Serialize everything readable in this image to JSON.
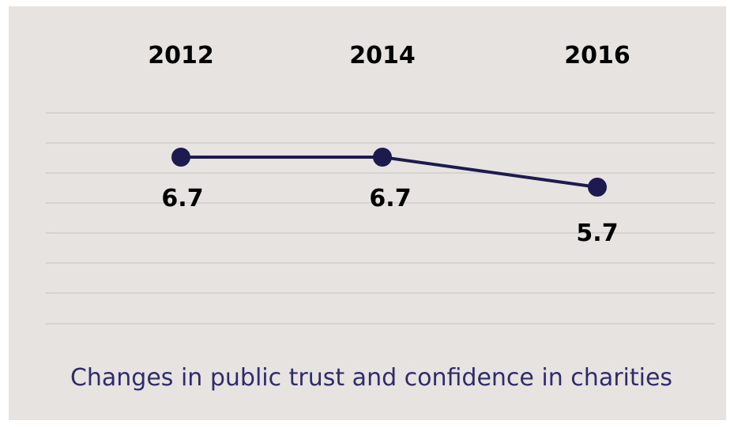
{
  "chart_data": {
    "type": "line",
    "x": [
      "2012",
      "2014",
      "2016"
    ],
    "series": [
      {
        "values": [
          6.7,
          6.7,
          5.7
        ]
      }
    ],
    "data_labels": [
      "6.7",
      "6.7",
      "5.7"
    ],
    "title": "Changes in public trust and confidence in charities",
    "xlabel": "",
    "ylabel": "",
    "grid": true,
    "colors": {
      "line": "#1c1a4e",
      "title": "#2f2c6b",
      "grid": "#cfccc9",
      "background": "#e6e3e1"
    }
  }
}
